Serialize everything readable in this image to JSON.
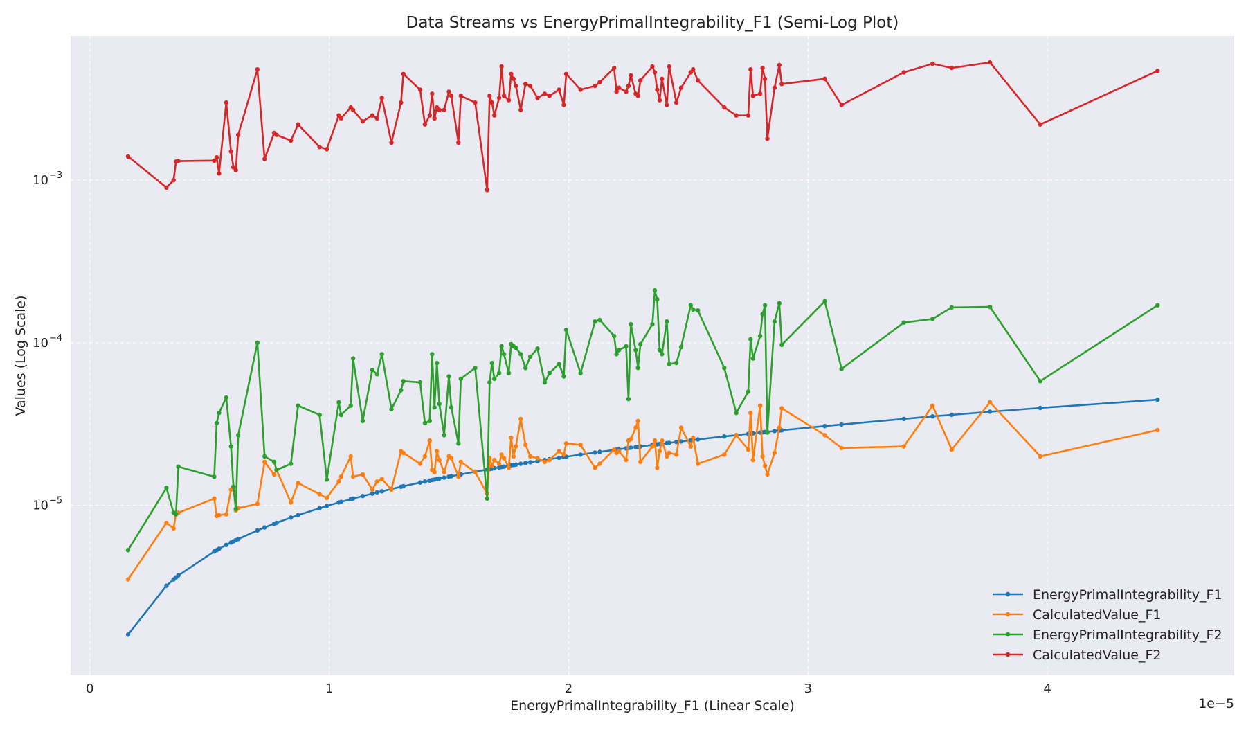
{
  "chart_data": {
    "type": "line",
    "title": "Data Streams vs EnergyPrimalIntegrability_F1 (Semi-Log Plot)",
    "xlabel": "EnergyPrimalIntegrability_F1 (Linear Scale)",
    "ylabel": "Values (Log Scale)",
    "x_offset_label": "1e−5",
    "xscale": "linear",
    "yscale": "log",
    "xlim": [
      -0.08,
      4.78
    ],
    "ylim": [
      9e-07,
      0.0077
    ],
    "x_ticks": [
      {
        "value": 0,
        "label": "0"
      },
      {
        "value": 1,
        "label": "1"
      },
      {
        "value": 2,
        "label": "2"
      },
      {
        "value": 3,
        "label": "3"
      },
      {
        "value": 4,
        "label": "4"
      }
    ],
    "y_ticks": [
      {
        "value": 1e-05,
        "base": "10",
        "exp": "−5"
      },
      {
        "value": 0.0001,
        "base": "10",
        "exp": "−4"
      },
      {
        "value": 0.001,
        "base": "10",
        "exp": "−3"
      }
    ],
    "grid": true,
    "legend_position": "bottom-right",
    "x": [
      0.16,
      0.32,
      0.35,
      0.36,
      0.37,
      0.52,
      0.53,
      0.54,
      0.57,
      0.59,
      0.6,
      0.61,
      0.62,
      0.7,
      0.73,
      0.77,
      0.78,
      0.84,
      0.87,
      0.96,
      0.99,
      1.04,
      1.05,
      1.09,
      1.1,
      1.14,
      1.18,
      1.2,
      1.22,
      1.26,
      1.3,
      1.31,
      1.38,
      1.4,
      1.42,
      1.43,
      1.44,
      1.45,
      1.46,
      1.48,
      1.5,
      1.51,
      1.54,
      1.55,
      1.61,
      1.66,
      1.67,
      1.68,
      1.69,
      1.71,
      1.72,
      1.73,
      1.75,
      1.76,
      1.77,
      1.78,
      1.8,
      1.82,
      1.84,
      1.87,
      1.9,
      1.92,
      1.96,
      1.98,
      1.99,
      2.05,
      2.11,
      2.13,
      2.19,
      2.2,
      2.21,
      2.24,
      2.25,
      2.26,
      2.28,
      2.29,
      2.3,
      2.35,
      2.36,
      2.37,
      2.38,
      2.39,
      2.41,
      2.42,
      2.45,
      2.47,
      2.51,
      2.52,
      2.54,
      2.65,
      2.7,
      2.75,
      2.76,
      2.77,
      2.8,
      2.81,
      2.82,
      2.83,
      2.86,
      2.88,
      2.89,
      3.07,
      3.14,
      3.4,
      3.52,
      3.6,
      3.76,
      3.97,
      4.46
    ],
    "series": [
      {
        "name": "EnergyPrimalIntegrability_F1",
        "color": "#1f77b4",
        "values": [
          1.6e-06,
          3.2e-06,
          3.5e-06,
          3.6e-06,
          3.7e-06,
          5.2e-06,
          5.3e-06,
          5.4e-06,
          5.7e-06,
          5.9e-06,
          6e-06,
          6.1e-06,
          6.2e-06,
          7e-06,
          7.3e-06,
          7.7e-06,
          7.8e-06,
          8.4e-06,
          8.7e-06,
          9.6e-06,
          9.9e-06,
          1.04e-05,
          1.05e-05,
          1.09e-05,
          1.1e-05,
          1.14e-05,
          1.18e-05,
          1.2e-05,
          1.22e-05,
          1.26e-05,
          1.3e-05,
          1.31e-05,
          1.38e-05,
          1.4e-05,
          1.42e-05,
          1.43e-05,
          1.44e-05,
          1.45e-05,
          1.46e-05,
          1.48e-05,
          1.5e-05,
          1.51e-05,
          1.54e-05,
          1.55e-05,
          1.61e-05,
          1.66e-05,
          1.67e-05,
          1.68e-05,
          1.69e-05,
          1.71e-05,
          1.72e-05,
          1.73e-05,
          1.75e-05,
          1.76e-05,
          1.77e-05,
          1.78e-05,
          1.8e-05,
          1.82e-05,
          1.84e-05,
          1.87e-05,
          1.9e-05,
          1.92e-05,
          1.96e-05,
          1.98e-05,
          1.99e-05,
          2.05e-05,
          2.11e-05,
          2.13e-05,
          2.19e-05,
          2.2e-05,
          2.21e-05,
          2.24e-05,
          2.25e-05,
          2.26e-05,
          2.28e-05,
          2.29e-05,
          2.3e-05,
          2.35e-05,
          2.36e-05,
          2.37e-05,
          2.38e-05,
          2.39e-05,
          2.41e-05,
          2.42e-05,
          2.45e-05,
          2.47e-05,
          2.51e-05,
          2.52e-05,
          2.54e-05,
          2.65e-05,
          2.7e-05,
          2.75e-05,
          2.76e-05,
          2.77e-05,
          2.8e-05,
          2.81e-05,
          2.82e-05,
          2.83e-05,
          2.86e-05,
          2.88e-05,
          2.89e-05,
          3.07e-05,
          3.14e-05,
          3.4e-05,
          3.52e-05,
          3.6e-05,
          3.76e-05,
          3.97e-05,
          4.46e-05
        ]
      },
      {
        "name": "CalculatedValue_F1",
        "color": "#ff7f0e",
        "values": [
          3.5e-06,
          7.8e-06,
          7.2e-06,
          8.9e-06,
          9e-06,
          1.1e-05,
          8.6e-06,
          8.7e-06,
          8.8e-06,
          1.25e-05,
          1.3e-05,
          9.3e-06,
          9.6e-06,
          1.02e-05,
          1.85e-05,
          1.55e-05,
          1.65e-05,
          1.04e-05,
          1.37e-05,
          1.17e-05,
          1.11e-05,
          1.4e-05,
          1.5e-05,
          2e-05,
          1.5e-05,
          1.55e-05,
          1.25e-05,
          1.4e-05,
          1.45e-05,
          1.25e-05,
          2.15e-05,
          2.1e-05,
          1.8e-05,
          2e-05,
          2.5e-05,
          1.65e-05,
          1.6e-05,
          2.15e-05,
          1.9e-05,
          1.6e-05,
          2e-05,
          1.95e-05,
          1.5e-05,
          1.85e-05,
          1.6e-05,
          1.18e-05,
          1.95e-05,
          1.75e-05,
          1.9e-05,
          1.8e-05,
          2.05e-05,
          1.95e-05,
          1.7e-05,
          2.6e-05,
          2e-05,
          2.3e-05,
          3.4e-05,
          2.35e-05,
          2e-05,
          1.95e-05,
          1.85e-05,
          1.9e-05,
          2.15e-05,
          2.05e-05,
          2.4e-05,
          2.35e-05,
          1.7e-05,
          1.8e-05,
          2.2e-05,
          2.1e-05,
          2.15e-05,
          1.9e-05,
          2.5e-05,
          2.55e-05,
          3e-05,
          3.3e-05,
          1.85e-05,
          2.3e-05,
          2.5e-05,
          1.7e-05,
          2.15e-05,
          2.5e-05,
          2e-05,
          2.1e-05,
          2.05e-05,
          3e-05,
          2.3e-05,
          2.6e-05,
          1.8e-05,
          2.05e-05,
          2.7e-05,
          2.2e-05,
          3.7e-05,
          1.9e-05,
          4.1e-05,
          2e-05,
          1.75e-05,
          1.55e-05,
          2.1e-05,
          3e-05,
          3.95e-05,
          2.7e-05,
          2.25e-05,
          2.3e-05,
          4.1e-05,
          2.2e-05,
          4.3e-05,
          2e-05,
          2.9e-05
        ]
      },
      {
        "name": "EnergyPrimalIntegrability_F2",
        "color": "#2ca02c",
        "values": [
          5.3e-06,
          1.28e-05,
          9e-06,
          8.8e-06,
          1.73e-05,
          1.5e-05,
          3.2e-05,
          3.7e-05,
          4.6e-05,
          2.3e-05,
          1.3e-05,
          9.5e-06,
          2.7e-05,
          0.0001,
          2e-05,
          1.85e-05,
          1.65e-05,
          1.8e-05,
          4.1e-05,
          3.6e-05,
          1.44e-05,
          4.3e-05,
          3.6e-05,
          4.1e-05,
          8e-05,
          3.3e-05,
          6.8e-05,
          6.4e-05,
          8.5e-05,
          3.9e-05,
          5.1e-05,
          5.8e-05,
          5.7e-05,
          3.2e-05,
          3.3e-05,
          8.5e-05,
          4e-05,
          7.5e-05,
          4.2e-05,
          2.7e-05,
          6.2e-05,
          4e-05,
          2.4e-05,
          6e-05,
          7e-05,
          1.1e-05,
          5.7e-05,
          7.5e-05,
          6e-05,
          6.5e-05,
          9.5e-05,
          8.5e-05,
          6.5e-05,
          9.8e-05,
          9.5e-05,
          9.3e-05,
          8.5e-05,
          7e-05,
          8.2e-05,
          9.2e-05,
          5.7e-05,
          6.5e-05,
          7.4e-05,
          6.2e-05,
          0.00012,
          6.5e-05,
          0.000135,
          0.000138,
          0.00011,
          8.5e-05,
          9e-05,
          9.5e-05,
          4.5e-05,
          0.00013,
          9e-05,
          7e-05,
          9.8e-05,
          0.00013,
          0.00021,
          0.000185,
          9e-05,
          8.5e-05,
          0.000135,
          7.4e-05,
          7.5e-05,
          9.4e-05,
          0.00017,
          0.00016,
          0.000158,
          7e-05,
          3.7e-05,
          5e-05,
          0.000105,
          8e-05,
          0.00011,
          0.00015,
          0.00017,
          2.8e-05,
          0.000135,
          0.000175,
          9.7e-05,
          0.00018,
          6.9e-05,
          0.000133,
          0.00014,
          0.000165,
          0.000166,
          5.8e-05,
          0.00017
        ]
      },
      {
        "name": "CalculatedValue_F2",
        "color": "#d62728",
        "values": [
          0.0014,
          0.0009,
          0.001,
          0.0013,
          0.00131,
          0.00132,
          0.00138,
          0.0011,
          0.003,
          0.0015,
          0.0012,
          0.00115,
          0.0019,
          0.0048,
          0.00135,
          0.00195,
          0.0019,
          0.00175,
          0.0022,
          0.0016,
          0.00155,
          0.0025,
          0.0024,
          0.0028,
          0.0027,
          0.0023,
          0.0025,
          0.0024,
          0.0032,
          0.0017,
          0.003,
          0.0045,
          0.0036,
          0.0022,
          0.0025,
          0.0034,
          0.0024,
          0.0028,
          0.0027,
          0.0027,
          0.0035,
          0.0033,
          0.0017,
          0.0033,
          0.003,
          0.00087,
          0.0033,
          0.003,
          0.0025,
          0.0032,
          0.005,
          0.0033,
          0.0031,
          0.0045,
          0.0042,
          0.0038,
          0.0027,
          0.0039,
          0.0038,
          0.0032,
          0.0034,
          0.0033,
          0.0036,
          0.0029,
          0.0045,
          0.0036,
          0.0038,
          0.004,
          0.0049,
          0.0035,
          0.0037,
          0.0035,
          0.0038,
          0.0044,
          0.0034,
          0.0033,
          0.0041,
          0.005,
          0.0046,
          0.0036,
          0.0031,
          0.0042,
          0.0029,
          0.005,
          0.003,
          0.0037,
          0.0046,
          0.0048,
          0.0041,
          0.0028,
          0.0025,
          0.0025,
          0.0048,
          0.0033,
          0.0034,
          0.0049,
          0.0042,
          0.0018,
          0.0037,
          0.0051,
          0.0039,
          0.0042,
          0.0029,
          0.0046,
          0.0052,
          0.0049,
          0.0053,
          0.0022,
          0.0047
        ]
      }
    ]
  }
}
